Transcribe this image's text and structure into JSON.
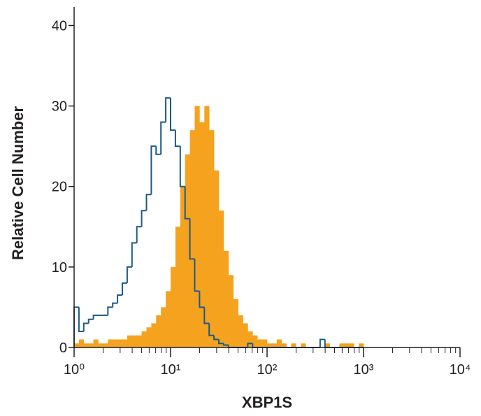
{
  "chart_data": {
    "type": "histogram",
    "xlabel": "XBP1S",
    "ylabel": "Relative Cell Number",
    "xscale": "log",
    "xlim": [
      1,
      10000
    ],
    "ylim": [
      0,
      42.3
    ],
    "xticks": [
      {
        "value": 1,
        "label": "10⁰"
      },
      {
        "value": 10,
        "label": "10¹"
      },
      {
        "value": 100,
        "label": "10²"
      },
      {
        "value": 1000,
        "label": "10³"
      },
      {
        "value": 10000,
        "label": "10⁴"
      }
    ],
    "xminorticks": [
      2,
      3,
      4,
      5,
      6,
      7,
      8,
      9,
      20,
      30,
      40,
      50,
      60,
      70,
      80,
      90,
      200,
      300,
      400,
      500,
      600,
      700,
      800,
      900,
      2000,
      3000,
      4000,
      5000,
      6000,
      7000,
      8000,
      9000
    ],
    "yticks": [
      0,
      10,
      20,
      30,
      40
    ],
    "bins": [
      1,
      1.122,
      1.259,
      1.413,
      1.585,
      1.778,
      1.995,
      2.239,
      2.512,
      2.818,
      3.162,
      3.548,
      3.981,
      4.467,
      5.012,
      5.623,
      6.31,
      7.079,
      7.943,
      8.913,
      10,
      11.22,
      12.59,
      14.13,
      15.85,
      17.78,
      19.95,
      22.39,
      25.12,
      28.18,
      31.62,
      35.48,
      39.81,
      44.67,
      50.12,
      56.23,
      63.1,
      70.79,
      79.43,
      89.13,
      100,
      112.2,
      125.9,
      141.3,
      158.5,
      177.8,
      199.5,
      223.9,
      251.2,
      281.8,
      316.2,
      354.8,
      398.1,
      446.7,
      501.2,
      562.3,
      631,
      707.9,
      794.3,
      891.3,
      1000
    ],
    "series": [
      {
        "style": "filled",
        "color": "#f5a21f",
        "values": [
          0.5,
          1,
          0.5,
          0.5,
          1,
          0.5,
          0.5,
          1,
          1,
          1,
          1,
          1.5,
          1.5,
          1.5,
          2,
          2.5,
          3,
          4,
          5,
          7,
          10,
          15,
          20,
          24,
          27,
          30,
          28,
          30,
          27,
          22,
          17,
          12,
          9,
          6,
          4,
          3,
          2,
          1.5,
          1,
          1,
          0.5,
          0.5,
          1,
          0.5,
          0,
          0.5,
          0,
          0.5,
          0,
          0,
          0,
          0,
          0.5,
          0,
          0,
          0.5,
          0.5,
          0.5,
          0,
          0.5
        ]
      },
      {
        "style": "step",
        "color": "#1c5a85",
        "values": [
          5,
          2,
          3,
          3.5,
          4,
          4,
          4,
          5,
          5.5,
          6.5,
          8,
          10,
          13,
          15,
          17,
          19,
          25,
          24,
          28,
          31,
          27,
          25,
          20,
          16,
          11,
          7,
          5,
          3,
          1.5,
          1,
          0.5,
          0.3,
          0,
          0,
          0,
          0,
          0.5,
          0,
          0,
          0,
          0,
          0,
          0,
          0,
          0,
          0,
          0,
          0,
          0,
          0,
          0,
          1,
          0,
          0,
          0,
          0,
          0,
          0,
          0,
          0
        ]
      }
    ]
  }
}
